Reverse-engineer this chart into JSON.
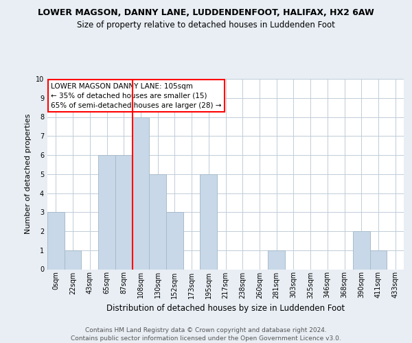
{
  "title1": "LOWER MAGSON, DANNY LANE, LUDDENDENFOOT, HALIFAX, HX2 6AW",
  "title2": "Size of property relative to detached houses in Luddenden Foot",
  "xlabel": "Distribution of detached houses by size in Luddenden Foot",
  "ylabel": "Number of detached properties",
  "bin_labels": [
    "0sqm",
    "22sqm",
    "43sqm",
    "65sqm",
    "87sqm",
    "108sqm",
    "130sqm",
    "152sqm",
    "173sqm",
    "195sqm",
    "217sqm",
    "238sqm",
    "260sqm",
    "281sqm",
    "303sqm",
    "325sqm",
    "346sqm",
    "368sqm",
    "390sqm",
    "411sqm",
    "433sqm"
  ],
  "bar_values": [
    3,
    1,
    0,
    6,
    6,
    8,
    5,
    3,
    0,
    5,
    0,
    0,
    0,
    1,
    0,
    0,
    0,
    0,
    2,
    1,
    0
  ],
  "bar_color": "#c8d8e8",
  "bar_edge_color": "#a8bccb",
  "red_line_bin": 5,
  "ylim": [
    0,
    10
  ],
  "yticks": [
    0,
    1,
    2,
    3,
    4,
    5,
    6,
    7,
    8,
    9,
    10
  ],
  "annotation_title": "LOWER MAGSON DANNY LANE: 105sqm",
  "annotation_line1": "← 35% of detached houses are smaller (15)",
  "annotation_line2": "65% of semi-detached houses are larger (28) →",
  "footer1": "Contains HM Land Registry data © Crown copyright and database right 2024.",
  "footer2": "Contains public sector information licensed under the Open Government Licence v3.0.",
  "bg_color": "#e8eef4",
  "plot_bg_color": "#ffffff",
  "grid_color": "#c0ccd8",
  "title1_fontsize": 9.0,
  "title2_fontsize": 8.5,
  "ylabel_fontsize": 8.0,
  "xlabel_fontsize": 8.5,
  "tick_fontsize": 7.0,
  "footer_fontsize": 6.5
}
